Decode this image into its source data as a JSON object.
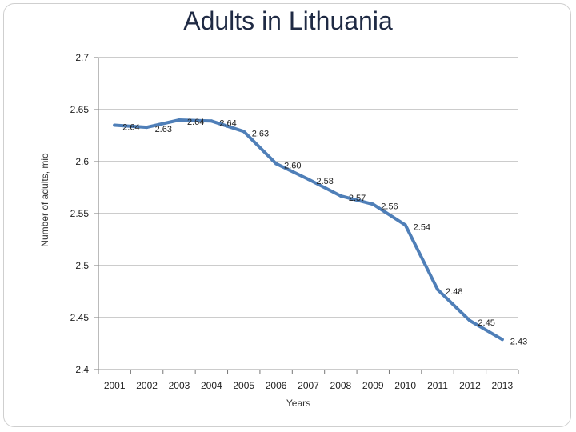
{
  "chart_data": {
    "type": "line",
    "title": "Adults in Lithuania",
    "xlabel": "Years",
    "ylabel": "Number of adults, mio",
    "ylim": [
      2.4,
      2.7
    ],
    "yticks": [
      "2.4",
      "2.45",
      "2.5",
      "2.55",
      "2.6",
      "2.65",
      "2.7"
    ],
    "grid": true,
    "legend": "none",
    "color": "#4f7fb8",
    "categories": [
      "2001",
      "2002",
      "2003",
      "2004",
      "2005",
      "2006",
      "2007",
      "2008",
      "2009",
      "2010",
      "2011",
      "2012",
      "2013"
    ],
    "series": [
      {
        "values": [
          2.635,
          2.633,
          2.64,
          2.639,
          2.629,
          2.598,
          2.583,
          2.567,
          2.559,
          2.539,
          2.477,
          2.447,
          2.429
        ],
        "labels": [
          "2.64",
          "2.63",
          "2.64",
          "2.64",
          "2.63",
          "2.60",
          "2.58",
          "2.57",
          "2.56",
          "2.54",
          "2.48",
          "2.45",
          "2.43"
        ]
      }
    ]
  }
}
